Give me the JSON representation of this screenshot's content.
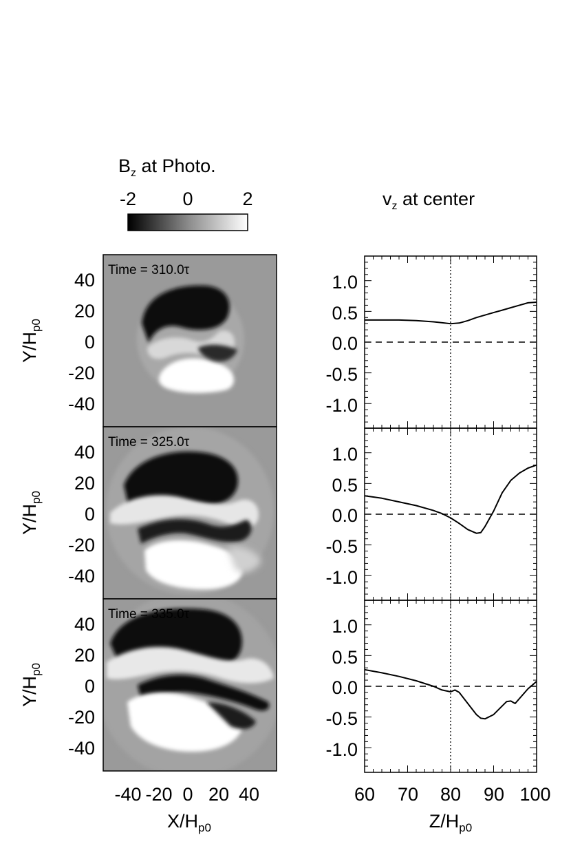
{
  "colorbar": {
    "title_main": "B",
    "title_sub": "z",
    "title_rest": " at Photo.",
    "ticks": [
      "-2",
      "0",
      "2"
    ],
    "range": [
      -2,
      2
    ],
    "colormap": [
      "#000000",
      "#ffffff"
    ]
  },
  "right_title": {
    "main": "v",
    "sub": "z",
    "rest": " at center"
  },
  "chart_data": [
    {
      "type": "heatmap",
      "annotation": "Time = 310.0τ",
      "quantity": "Bz at Photo.",
      "xlim": [
        -55,
        55
      ],
      "ylim": [
        -55,
        55
      ],
      "xticks": [
        -40,
        -20,
        0,
        20,
        40
      ],
      "yticks": [
        40,
        20,
        0,
        -20,
        -40
      ],
      "ylabel": "Y/Hp0",
      "xlabel": ""
    },
    {
      "type": "line",
      "series": [
        {
          "x": [
            60,
            64,
            68,
            72,
            76,
            80,
            82,
            84,
            86,
            88,
            90,
            92,
            94,
            96,
            98,
            100
          ],
          "y": [
            0.36,
            0.36,
            0.36,
            0.35,
            0.33,
            0.3,
            0.31,
            0.35,
            0.4,
            0.44,
            0.48,
            0.52,
            0.56,
            0.6,
            0.64,
            0.65
          ]
        }
      ],
      "xlim": [
        60,
        100
      ],
      "ylim": [
        -1.4,
        1.4
      ],
      "yticks": [
        1.0,
        0.5,
        0.0,
        -0.5,
        -1.0
      ],
      "ref_vline": 80,
      "ref_hline": 0.0
    },
    {
      "type": "heatmap",
      "annotation": "Time = 325.0τ",
      "quantity": "Bz at Photo.",
      "xlim": [
        -55,
        55
      ],
      "ylim": [
        -55,
        55
      ],
      "xticks": [
        -40,
        -20,
        0,
        20,
        40
      ],
      "yticks": [
        40,
        20,
        0,
        -20,
        -40
      ],
      "ylabel": "Y/Hp0",
      "xlabel": ""
    },
    {
      "type": "line",
      "series": [
        {
          "x": [
            60,
            64,
            68,
            72,
            76,
            78,
            80,
            82,
            84,
            86,
            87,
            88,
            90,
            92,
            94,
            96,
            98,
            100
          ],
          "y": [
            0.3,
            0.26,
            0.2,
            0.14,
            0.06,
            0.01,
            -0.06,
            -0.15,
            -0.25,
            -0.31,
            -0.3,
            -0.2,
            0.05,
            0.35,
            0.55,
            0.67,
            0.75,
            0.8
          ]
        }
      ],
      "xlim": [
        60,
        100
      ],
      "ylim": [
        -1.4,
        1.4
      ],
      "yticks": [
        1.0,
        0.5,
        0.0,
        -0.5,
        -1.0
      ],
      "ref_vline": 80,
      "ref_hline": 0.0
    },
    {
      "type": "heatmap",
      "annotation": "Time = 335.0τ",
      "quantity": "Bz at Photo.",
      "xlim": [
        -55,
        55
      ],
      "ylim": [
        -55,
        55
      ],
      "xticks": [
        -40,
        -20,
        0,
        20,
        40
      ],
      "yticks": [
        40,
        20,
        0,
        -20,
        -40
      ],
      "ylabel": "Y/Hp0",
      "xlabel": "X/Hp0",
      "xtick_labels": [
        "-40",
        "-20",
        "0",
        "20",
        "40"
      ]
    },
    {
      "type": "line",
      "series": [
        {
          "x": [
            60,
            64,
            68,
            72,
            76,
            78,
            80,
            81,
            82,
            84,
            86,
            87,
            88,
            90,
            92,
            93,
            94,
            95,
            96,
            98,
            100
          ],
          "y": [
            0.27,
            0.22,
            0.16,
            0.09,
            0.0,
            -0.06,
            -0.09,
            -0.06,
            -0.1,
            -0.28,
            -0.46,
            -0.52,
            -0.53,
            -0.46,
            -0.32,
            -0.25,
            -0.24,
            -0.28,
            -0.2,
            -0.04,
            0.08
          ]
        }
      ],
      "xlim": [
        60,
        100
      ],
      "ylim": [
        -1.4,
        1.4
      ],
      "yticks": [
        1.0,
        0.5,
        0.0,
        -0.5,
        -1.0
      ],
      "xtick_labels": [
        "60",
        "70",
        "80",
        "90",
        "100"
      ],
      "xlabel": "Z/Hp0",
      "ref_vline": 80,
      "ref_hline": 0.0
    }
  ]
}
